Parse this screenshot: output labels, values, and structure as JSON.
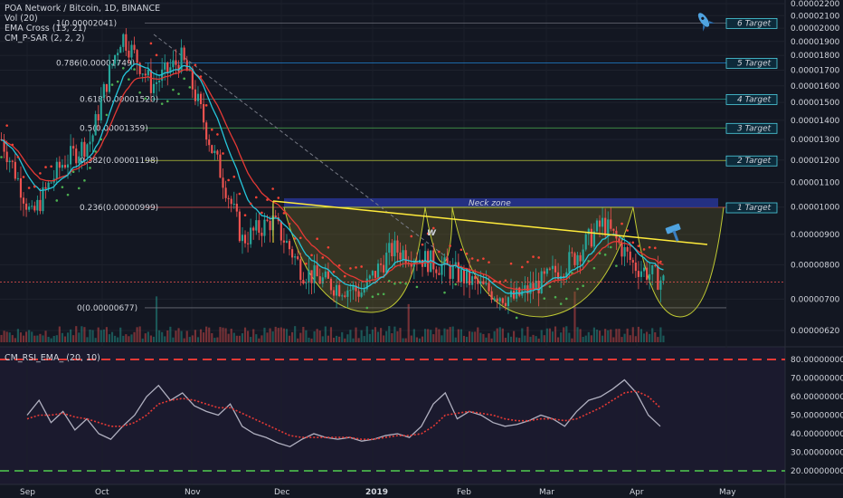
{
  "header": {
    "title": "POA Network / Bitcoin, 1D, BINANCE",
    "indicators": [
      "Vol (20)",
      "EMA Cross (13, 21)",
      "CM_P-SAR (2, 2, 2)"
    ],
    "rsi_title": "CM_RSI_EMA_ (20, 10)"
  },
  "colors": {
    "background": "#131722",
    "up": "#26a69a",
    "down": "#ef5350",
    "ema_fast": "#26c6da",
    "ema_slow": "#e53935",
    "sar_up": "#4caf50",
    "sar_down": "#f44336",
    "trendline": "#ffeb3b",
    "neck_zone": "#283593",
    "rsi_line": "#b0b0c0",
    "rsi_ema": "#e53935"
  },
  "annotations": {
    "pattern_label": "W",
    "neck_zone_label": "Neck zone",
    "rocket_icon": "rocket-icon",
    "hammer_icon": "hammer-icon"
  },
  "chart_data": [
    {
      "type": "candlestick",
      "title": "POA Network / Bitcoin, 1D, BINANCE",
      "x_ticks": [
        "Sep",
        "Oct",
        "Nov",
        "Dec",
        "2019",
        "Feb",
        "Mar",
        "Apr",
        "May"
      ],
      "y_ticks": [
        "0.00002200",
        "0.00002100",
        "0.00002000",
        "0.00001900",
        "0.00001800",
        "0.00001700",
        "0.00001600",
        "0.00001500",
        "0.00001400",
        "0.00001300",
        "0.00001200",
        "0.00001100",
        "0.00001000",
        "0.00000900",
        "0.00000800",
        "0.00000700",
        "0.00000620"
      ],
      "last_price": "0.00000748",
      "fib_levels": [
        {
          "label": "1(0.00002041)",
          "value": 2.041e-05
        },
        {
          "label": "0.786(0.00001749)",
          "value": 1.749e-05
        },
        {
          "label": "0.618(0.00001520)",
          "value": 1.52e-05
        },
        {
          "label": "0.5(0.00001359)",
          "value": 1.359e-05
        },
        {
          "label": "0.382(0.00001198)",
          "value": 1.198e-05
        },
        {
          "label": "0.236(0.00000999)",
          "value": 9.99e-06
        },
        {
          "label": "0(0.00000677)",
          "value": 6.77e-06
        }
      ],
      "targets": [
        {
          "label": "6 Target",
          "value": 2.041e-05
        },
        {
          "label": "5 Target",
          "value": 1.749e-05
        },
        {
          "label": "4 Target",
          "value": 1.52e-05
        },
        {
          "label": "3 Target",
          "value": 1.359e-05
        },
        {
          "label": "2 Target",
          "value": 1.198e-05
        },
        {
          "label": "1 Target",
          "value": 9.99e-06
        }
      ],
      "neck_zone": [
        9.99e-06,
        1.035e-05
      ],
      "series_close_approx": [
        [
          "Sep",
          1.3e-05
        ],
        [
          "mid-Sep",
          9.6e-06
        ],
        [
          "late-Sep",
          1.18e-05
        ],
        [
          "Oct",
          1.3e-05
        ],
        [
          "mid-Oct",
          1.95e-05
        ],
        [
          "late-Oct",
          1.6e-05
        ],
        [
          "Nov",
          1.78e-05
        ],
        [
          "mid-Nov",
          1.25e-05
        ],
        [
          "late-Nov",
          8.8e-06
        ],
        [
          "Dec",
          9.5e-06
        ],
        [
          "mid-Dec",
          7.8e-06
        ],
        [
          "late-Dec",
          7.4e-06
        ],
        [
          "2019",
          7.2e-06
        ],
        [
          "mid-Jan",
          8.5e-06
        ],
        [
          "late-Jan",
          8.2e-06
        ],
        [
          "Feb",
          7.8e-06
        ],
        [
          "mid-Feb",
          7.3e-06
        ],
        [
          "late-Feb",
          7e-06
        ],
        [
          "Mar",
          7.5e-06
        ],
        [
          "mid-Mar",
          8.2e-06
        ],
        [
          "late-Mar",
          9.4e-06
        ],
        [
          "Apr",
          8e-06
        ],
        [
          "early-Apr",
          7.5e-06
        ]
      ]
    },
    {
      "type": "line",
      "title": "CM_RSI_EMA_ (20, 10)",
      "y_ticks": [
        "80.00000000",
        "70.00000000",
        "60.00000000",
        "50.00000000",
        "40.00000000",
        "30.00000000",
        "20.00000000"
      ],
      "levels": [
        80,
        20
      ],
      "rsi_approx": [
        50,
        58,
        46,
        52,
        42,
        48,
        40,
        37,
        44,
        50,
        60,
        66,
        58,
        62,
        55,
        52,
        50,
        56,
        44,
        40,
        38,
        35,
        33,
        37,
        40,
        38,
        37,
        38,
        36,
        37,
        39,
        40,
        38,
        44,
        56,
        62,
        48,
        52,
        50,
        46,
        44,
        45,
        47,
        50,
        48,
        44,
        52,
        58,
        60,
        64,
        69,
        62,
        50,
        44
      ],
      "rsi_ema_approx": [
        48,
        50,
        50,
        51,
        49,
        48,
        46,
        44,
        44,
        46,
        50,
        56,
        58,
        59,
        58,
        56,
        54,
        54,
        51,
        48,
        45,
        42,
        39,
        38,
        38,
        38,
        38,
        38,
        37,
        37,
        38,
        39,
        39,
        40,
        44,
        50,
        51,
        52,
        51,
        50,
        48,
        47,
        47,
        48,
        48,
        47,
        48,
        51,
        54,
        58,
        62,
        63,
        60,
        54
      ]
    }
  ]
}
